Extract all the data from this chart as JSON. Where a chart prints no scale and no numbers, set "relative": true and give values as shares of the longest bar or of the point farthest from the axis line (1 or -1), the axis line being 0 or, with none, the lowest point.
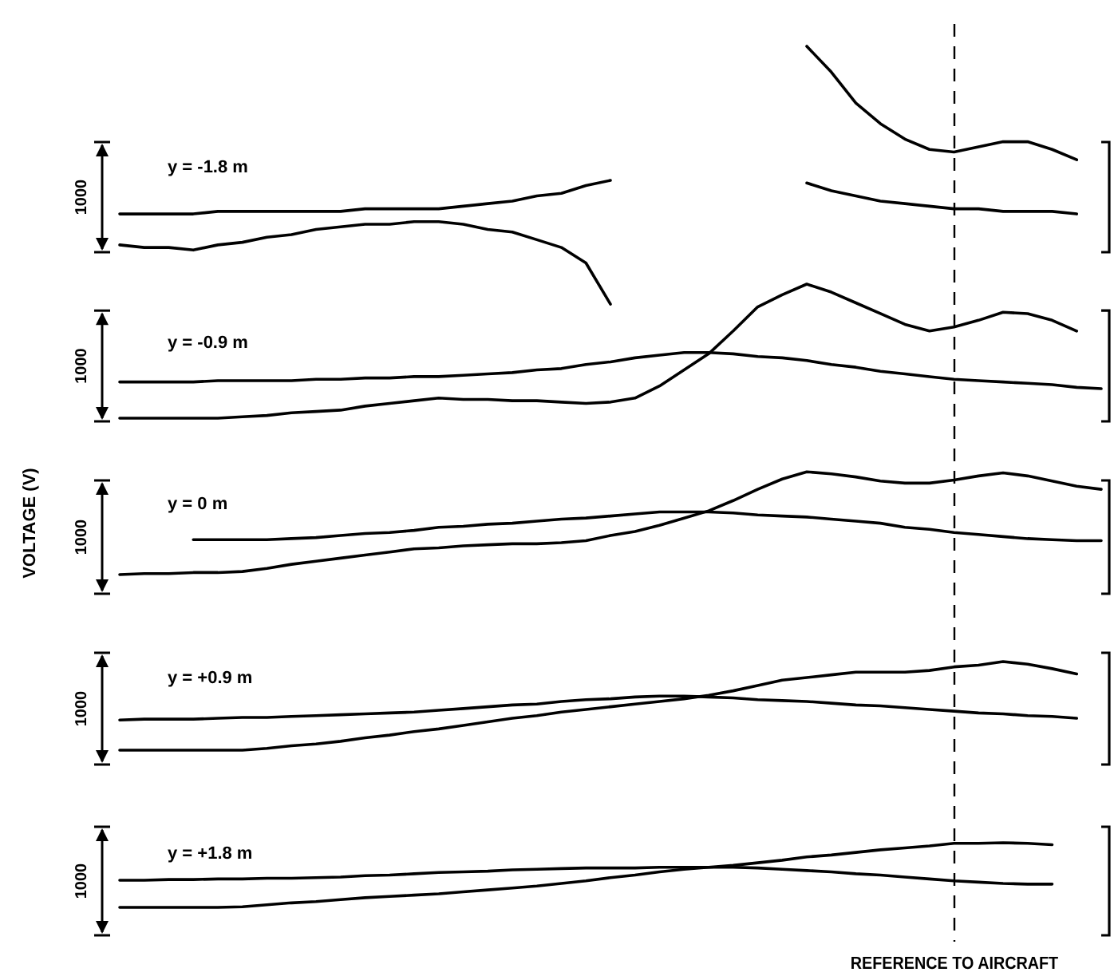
{
  "chart_data": [
    {
      "type": "line",
      "title": "y = -1.8 m",
      "relative": true,
      "categories": [
        null,
        null,
        null,
        null,
        null,
        null,
        null,
        null,
        null,
        null,
        null,
        null,
        null,
        null,
        null,
        null,
        null,
        null,
        null,
        null,
        null,
        null,
        null,
        null,
        null,
        null,
        null,
        null,
        null,
        null,
        null,
        null,
        null,
        null,
        null,
        null,
        null,
        null,
        null,
        null,
        null
      ],
      "tick_labels": false,
      "line_style": "solid",
      "annotations": [
        "1000"
      ],
      "series": [
        {
          "color": "#000000",
          "values": [
            0.35,
            0.35,
            0.35,
            0.35,
            0.36,
            0.36,
            0.36,
            0.36,
            0.36,
            0.36,
            0.37,
            0.37,
            0.37,
            0.37,
            0.38,
            0.39,
            0.4,
            0.42,
            0.43,
            0.46,
            0.48,
            null,
            null,
            null,
            null,
            null,
            null,
            null,
            null,
            null,
            null,
            null,
            null,
            null,
            null,
            null,
            null,
            null,
            null,
            null,
            null
          ]
        },
        {
          "color": "#000000",
          "values": [
            0.23,
            0.22,
            0.22,
            0.21,
            0.23,
            0.24,
            0.26,
            0.27,
            0.29,
            0.3,
            0.31,
            0.31,
            0.32,
            0.32,
            0.31,
            0.29,
            0.28,
            0.25,
            0.22,
            0.16,
            0,
            null,
            null,
            null,
            null,
            null,
            null,
            null,
            null,
            null,
            null,
            null,
            null,
            null,
            null,
            null,
            null,
            null,
            null,
            null,
            null
          ]
        },
        {
          "color": "#000000",
          "values": [
            null,
            null,
            null,
            null,
            null,
            null,
            null,
            null,
            null,
            null,
            null,
            null,
            null,
            null,
            null,
            null,
            null,
            null,
            null,
            null,
            null,
            null,
            null,
            null,
            null,
            null,
            null,
            null,
            0.47,
            0.44,
            0.42,
            0.4,
            0.39,
            0.38,
            0.37,
            0.37,
            0.36,
            0.36,
            0.36,
            0.35,
            null
          ]
        },
        {
          "color": "#000000",
          "values": [
            null,
            null,
            null,
            null,
            null,
            null,
            null,
            null,
            null,
            null,
            null,
            null,
            null,
            null,
            null,
            null,
            null,
            null,
            null,
            null,
            null,
            null,
            null,
            null,
            null,
            null,
            null,
            null,
            1,
            0.9,
            0.78,
            0.7,
            0.64,
            0.6,
            0.59,
            0.61,
            0.63,
            0.63,
            0.6,
            0.56,
            null
          ]
        }
      ]
    },
    {
      "type": "line",
      "title": "y = -0.9 m",
      "relative": true,
      "categories": [
        null,
        null,
        null,
        null,
        null,
        null,
        null,
        null,
        null,
        null,
        null,
        null,
        null,
        null,
        null,
        null,
        null,
        null,
        null,
        null,
        null,
        null,
        null,
        null,
        null,
        null,
        null,
        null,
        null,
        null,
        null,
        null,
        null,
        null,
        null,
        null,
        null,
        null,
        null,
        null,
        null
      ],
      "tick_labels": false,
      "line_style": "solid",
      "annotations": [
        "1000"
      ],
      "series": [
        {
          "color": "#000000",
          "values": [
            0.27,
            0.27,
            0.27,
            0.27,
            0.28,
            0.28,
            0.28,
            0.28,
            0.29,
            0.29,
            0.3,
            0.3,
            0.31,
            0.31,
            0.32,
            0.33,
            0.34,
            0.36,
            0.37,
            0.4,
            0.42,
            0.45,
            0.47,
            0.49,
            0.49,
            0.48,
            0.46,
            0.45,
            0.43,
            0.4,
            0.38,
            0.35,
            0.33,
            0.31,
            0.29,
            0.28,
            0.27,
            0.26,
            0.25,
            0.23,
            0.22
          ]
        },
        {
          "color": "#000000",
          "values": [
            0,
            0,
            0,
            0,
            0,
            0.01,
            0.02,
            0.04,
            0.05,
            0.06,
            0.09,
            0.11,
            0.13,
            0.15,
            0.14,
            0.14,
            0.13,
            0.13,
            0.12,
            0.11,
            0.12,
            0.15,
            0.24,
            0.36,
            0.48,
            0.65,
            0.83,
            0.92,
            1,
            0.94,
            0.86,
            0.78,
            0.7,
            0.65,
            0.68,
            0.73,
            0.79,
            0.78,
            0.73,
            0.65,
            null
          ]
        }
      ]
    },
    {
      "type": "line",
      "title": "y = 0 m",
      "ylabel": "VOLTAGE (V)",
      "relative": true,
      "categories": [
        null,
        null,
        null,
        null,
        null,
        null,
        null,
        null,
        null,
        null,
        null,
        null,
        null,
        null,
        null,
        null,
        null,
        null,
        null,
        null,
        null,
        null,
        null,
        null,
        null,
        null,
        null,
        null,
        null,
        null,
        null,
        null,
        null,
        null,
        null,
        null,
        null,
        null,
        null,
        null,
        null
      ],
      "tick_labels": false,
      "line_style": "solid",
      "annotations": [
        "1000"
      ],
      "series": [
        {
          "color": "#000000",
          "values": [
            null,
            null,
            null,
            0.34,
            0.34,
            0.34,
            0.34,
            0.35,
            0.36,
            0.38,
            0.4,
            0.41,
            0.43,
            0.46,
            0.47,
            0.49,
            0.5,
            0.52,
            0.54,
            0.55,
            0.57,
            0.59,
            0.61,
            0.61,
            0.61,
            0.6,
            0.58,
            0.57,
            0.56,
            0.54,
            0.52,
            0.5,
            0.46,
            0.44,
            0.41,
            0.39,
            0.37,
            0.35,
            0.34,
            0.33,
            0.33
          ]
        },
        {
          "color": "#000000",
          "values": [
            0,
            0.01,
            0.01,
            0.02,
            0.02,
            0.03,
            0.06,
            0.1,
            0.13,
            0.16,
            0.19,
            0.22,
            0.25,
            0.26,
            0.28,
            0.29,
            0.3,
            0.3,
            0.31,
            0.33,
            0.38,
            0.42,
            0.48,
            0.55,
            0.62,
            0.72,
            0.83,
            0.93,
            1,
            0.98,
            0.95,
            0.91,
            0.89,
            0.89,
            0.92,
            0.96,
            0.99,
            0.96,
            0.91,
            0.86,
            0.83
          ]
        }
      ]
    },
    {
      "type": "line",
      "title": "y = +0.9 m",
      "relative": true,
      "categories": [
        null,
        null,
        null,
        null,
        null,
        null,
        null,
        null,
        null,
        null,
        null,
        null,
        null,
        null,
        null,
        null,
        null,
        null,
        null,
        null,
        null,
        null,
        null,
        null,
        null,
        null,
        null,
        null,
        null,
        null,
        null,
        null,
        null,
        null,
        null,
        null,
        null,
        null,
        null,
        null,
        null
      ],
      "tick_labels": false,
      "line_style": "solid",
      "annotations": [
        "1000"
      ],
      "series": [
        {
          "color": "#000000",
          "values": [
            0.34,
            0.35,
            0.35,
            0.35,
            0.36,
            0.37,
            0.37,
            0.38,
            0.39,
            0.4,
            0.41,
            0.42,
            0.43,
            0.45,
            0.47,
            0.49,
            0.51,
            0.52,
            0.55,
            0.57,
            0.58,
            0.6,
            0.61,
            0.61,
            0.6,
            0.59,
            0.57,
            0.56,
            0.55,
            0.53,
            0.51,
            0.5,
            0.48,
            0.46,
            0.44,
            0.42,
            0.41,
            0.39,
            0.38,
            0.36,
            null
          ]
        },
        {
          "color": "#000000",
          "values": [
            0,
            0,
            0,
            0,
            0,
            0,
            0.02,
            0.05,
            0.07,
            0.1,
            0.14,
            0.17,
            0.21,
            0.24,
            0.28,
            0.32,
            0.36,
            0.39,
            0.43,
            0.46,
            0.49,
            0.52,
            0.55,
            0.58,
            0.62,
            0.67,
            0.73,
            0.79,
            0.82,
            0.85,
            0.88,
            0.88,
            0.88,
            0.9,
            0.94,
            0.96,
            1,
            0.97,
            0.92,
            0.86,
            null
          ]
        }
      ]
    },
    {
      "type": "line",
      "title": "y = +1.8 m",
      "relative": true,
      "categories": [
        null,
        null,
        null,
        null,
        null,
        null,
        null,
        null,
        null,
        null,
        null,
        null,
        null,
        null,
        null,
        null,
        null,
        null,
        null,
        null,
        null,
        null,
        null,
        null,
        null,
        null,
        null,
        null,
        null,
        null,
        null,
        null,
        null,
        null,
        null,
        null,
        null,
        null,
        null,
        null,
        null
      ],
      "xlabel": "REFERENCE TO AIRCRAFT",
      "tick_labels": false,
      "line_style": "solid",
      "annotations": [
        "1000"
      ],
      "series": [
        {
          "color": "#000000",
          "values": [
            0.42,
            0.42,
            0.43,
            0.43,
            0.44,
            0.44,
            0.45,
            0.45,
            0.46,
            0.47,
            0.49,
            0.5,
            0.52,
            0.54,
            0.55,
            0.56,
            0.58,
            0.59,
            0.6,
            0.61,
            0.61,
            0.61,
            0.62,
            0.62,
            0.62,
            0.62,
            0.61,
            0.59,
            0.57,
            0.55,
            0.52,
            0.5,
            0.47,
            0.44,
            0.41,
            0.39,
            0.37,
            0.36,
            0.36,
            null,
            null
          ]
        },
        {
          "color": "#000000",
          "values": [
            0,
            0,
            0,
            0,
            0,
            0.01,
            0.04,
            0.07,
            0.09,
            0.12,
            0.15,
            0.17,
            0.19,
            0.21,
            0.24,
            0.27,
            0.3,
            0.33,
            0.37,
            0.41,
            0.46,
            0.5,
            0.55,
            0.59,
            0.62,
            0.65,
            0.69,
            0.73,
            0.78,
            0.81,
            0.85,
            0.89,
            0.92,
            0.95,
            0.99,
            0.99,
            1,
            0.99,
            0.97,
            null,
            null
          ]
        }
      ]
    }
  ]
}
